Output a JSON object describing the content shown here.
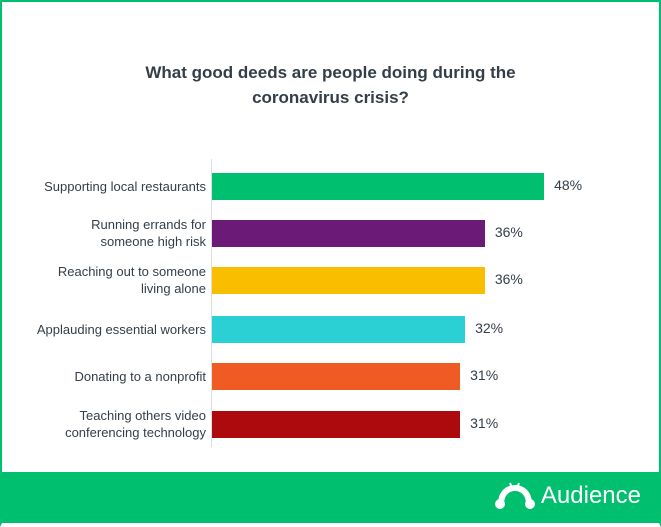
{
  "chart_data": {
    "type": "bar",
    "orientation": "horizontal",
    "title": "What good deeds are people doing during the coronavirus crisis?",
    "title_lines": [
      "What good deeds are people doing during the",
      "coronavirus crisis?"
    ],
    "categories": [
      [
        "Supporting local restaurants"
      ],
      [
        "Running errands for",
        "someone high risk"
      ],
      [
        "Reaching out to someone",
        "living alone"
      ],
      [
        "Applauding essential workers"
      ],
      [
        "Donating to a nonprofit"
      ],
      [
        "Teaching others video",
        "conferencing technology"
      ]
    ],
    "values": [
      48,
      36,
      36,
      32,
      31,
      31
    ],
    "value_labels": [
      "48%",
      "36%",
      "36%",
      "32%",
      "31%",
      "31%"
    ],
    "colors": [
      "#00bf6f",
      "#6b1a78",
      "#f9be00",
      "#2ad0d4",
      "#f05b24",
      "#ad0a0e"
    ],
    "xlabel": "",
    "ylabel": "",
    "grid": false
  },
  "footer": {
    "brand": "Audience",
    "color": "#00bf6f"
  }
}
